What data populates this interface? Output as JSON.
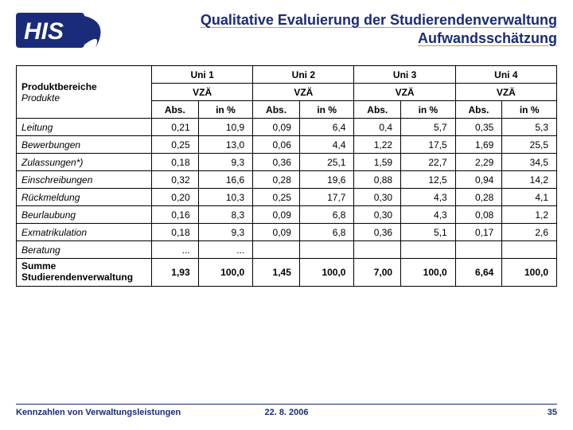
{
  "title": {
    "line1": "Qualitative Evaluierung der Studierendenverwaltung",
    "line2": "Aufwandsschätzung"
  },
  "logo": {
    "text": "HIS",
    "text_color": "#1a2b7a",
    "accent_color": "#ffffff",
    "swoosh_color": "#1a2b7a"
  },
  "table": {
    "header": {
      "produktbereiche": "Produktbereiche",
      "produkte": "Produkte",
      "unis": [
        "Uni 1",
        "Uni 2",
        "Uni 3",
        "Uni 4"
      ],
      "vza": "VZÄ",
      "abs": "Abs.",
      "pct": "in %"
    },
    "rows": [
      {
        "label": "Leitung",
        "vals": [
          "0,21",
          "10,9",
          "0,09",
          "6,4",
          "0,4",
          "5,7",
          "0,35",
          "5,3"
        ]
      },
      {
        "label": "Bewerbungen",
        "vals": [
          "0,25",
          "13,0",
          "0,06",
          "4,4",
          "1,22",
          "17,5",
          "1,69",
          "25,5"
        ]
      },
      {
        "label": "Zulassungen*)",
        "vals": [
          "0,18",
          "9,3",
          "0,36",
          "25,1",
          "1,59",
          "22,7",
          "2,29",
          "34,5"
        ]
      },
      {
        "label": "Einschreibungen",
        "vals": [
          "0,32",
          "16,6",
          "0,28",
          "19,6",
          "0,88",
          "12,5",
          "0,94",
          "14,2"
        ]
      },
      {
        "label": "Rückmeldung",
        "vals": [
          "0,20",
          "10,3",
          "0,25",
          "17,7",
          "0,30",
          "4,3",
          "0,28",
          "4,1"
        ]
      },
      {
        "label": "Beurlaubung",
        "vals": [
          "0,16",
          "8,3",
          "0,09",
          "6,8",
          "0,30",
          "4,3",
          "0,08",
          "1,2"
        ]
      },
      {
        "label": "Exmatrikulation",
        "vals": [
          "0,18",
          "9,3",
          "0,09",
          "6,8",
          "0,36",
          "5,1",
          "0,17",
          "2,6"
        ]
      },
      {
        "label": "Beratung",
        "vals": [
          "...",
          "...",
          "",
          "",
          "",
          "",
          "",
          ""
        ]
      }
    ],
    "sum": {
      "label1": "Summe",
      "label2": "Studierendenverwaltung",
      "vals": [
        "1,93",
        "100,0",
        "1,45",
        "100,0",
        "7,00",
        "100,0",
        "6,64",
        "100,0"
      ]
    }
  },
  "footer": {
    "left": "Kennzahlen von Verwaltungsleistungen",
    "date": "22. 8. 2006",
    "page": "35"
  },
  "colors": {
    "title_text": "#1a2b7a",
    "underline": "#c0a040",
    "border": "#000000",
    "background": "#ffffff"
  }
}
